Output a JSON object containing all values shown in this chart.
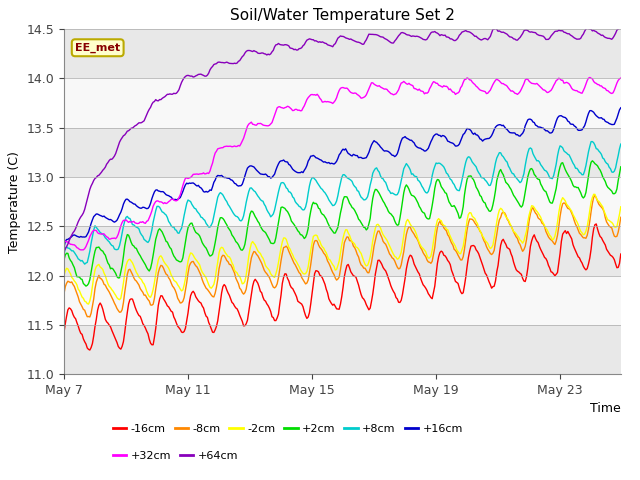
{
  "title": "Soil/Water Temperature Set 2",
  "xlabel": "Time",
  "ylabel": "Temperature (C)",
  "ylim": [
    11.0,
    14.5
  ],
  "background_color": "#ffffff",
  "annotation_text": "EE_met",
  "annotation_box_color": "#ffffcc",
  "annotation_border_color": "#bbaa00",
  "x_tick_labels": [
    "May 7",
    "May 11",
    "May 15",
    "May 19",
    "May 23"
  ],
  "x_tick_positions": [
    0,
    96,
    192,
    288,
    384
  ],
  "n_points": 432,
  "series": [
    {
      "label": "-16cm",
      "color": "#ff0000"
    },
    {
      "label": "-8cm",
      "color": "#ff8800"
    },
    {
      "label": "-2cm",
      "color": "#ffff00"
    },
    {
      "label": "+2cm",
      "color": "#00dd00"
    },
    {
      "label": "+8cm",
      "color": "#00cccc"
    },
    {
      "label": "+16cm",
      "color": "#0000cc"
    },
    {
      "label": "+32cm",
      "color": "#ff00ff"
    },
    {
      "label": "+64cm",
      "color": "#8800bb"
    }
  ],
  "band_colors": [
    "#e8e8e8",
    "#f8f8f8"
  ],
  "band_edges": [
    11.0,
    11.5,
    12.0,
    12.5,
    13.0,
    13.5,
    14.0,
    14.5
  ]
}
